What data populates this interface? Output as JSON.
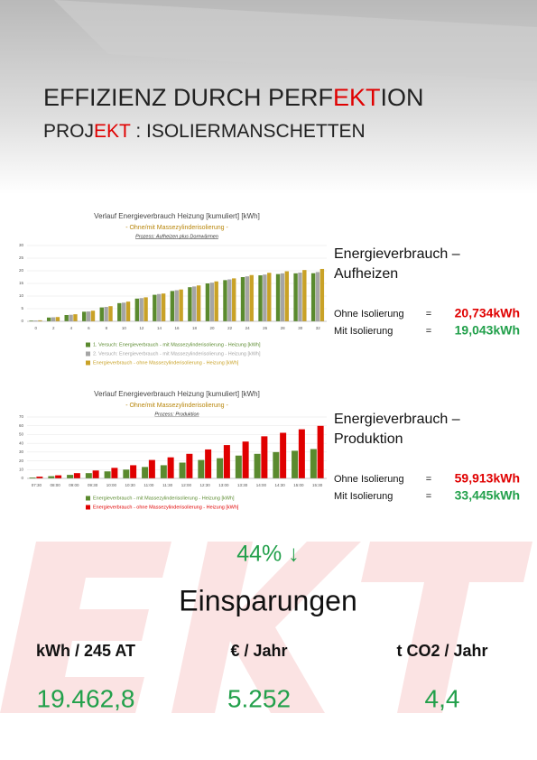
{
  "header": {
    "title_parts": [
      "EFFIZIENZ DURCH PERF",
      "EKT",
      "ION"
    ],
    "subtitle_parts": [
      "PROJ",
      "EKT",
      " : ISOLIERMANSCHETTEN"
    ]
  },
  "chart_data": [
    {
      "type": "bar",
      "title": "Verlauf Energieverbrauch Heizung [kumuliert] [kWh]",
      "subtitle": "- Ohne/mit Massezylinderisolierung -",
      "note": "Prozess: Aufheizen plus Dornwärmen",
      "categories": [
        "0",
        "2",
        "4",
        "6",
        "8",
        "10",
        "12",
        "14",
        "16",
        "18",
        "20",
        "22",
        "24",
        "26",
        "28",
        "30",
        "32"
      ],
      "series": [
        {
          "name": "1. Versuch: Energieverbrauch - mit Massezylinderisolierung - Heizung [kWh]",
          "color": "#5a8a2e",
          "values": [
            0.3,
            1.5,
            2.5,
            3.8,
            5.5,
            7.2,
            9,
            10.5,
            12,
            13.5,
            15,
            16.3,
            17.5,
            18.2,
            18.7,
            19,
            19.04
          ]
        },
        {
          "name": "2. Versuch: Energieverbrauch - mit Massezylinderisolierung - Heizung [kWh]",
          "color": "#a5a5a5",
          "values": [
            0.3,
            1.6,
            2.6,
            3.9,
            5.7,
            7.4,
            9.2,
            10.8,
            12.3,
            13.8,
            15.3,
            16.6,
            17.8,
            18.5,
            19,
            19.3,
            19.5
          ]
        },
        {
          "name": "Energieverbrauch - ohne Massezylinderisolierung - Heizung [kWh]",
          "color": "#c9a227",
          "values": [
            0.4,
            1.7,
            2.8,
            4.2,
            6,
            7.8,
            9.5,
            11,
            12.6,
            14.2,
            15.8,
            17,
            18.3,
            19.2,
            19.8,
            20.3,
            20.73
          ]
        }
      ],
      "ylim": [
        0,
        30
      ],
      "yticks": [
        0,
        5,
        10,
        15,
        20,
        25,
        30
      ],
      "grid": true
    },
    {
      "type": "bar",
      "title": "Verlauf Energieverbrauch Heizung [kumuliert] [kWh]",
      "subtitle": "- Ohne/mit Massezylinderisolierung -",
      "note": "Prozess: Produktion",
      "categories": [
        "07:30",
        "08:00",
        "09:00",
        "09:30",
        "10:00",
        "10:30",
        "11:00",
        "11:30",
        "12:00",
        "12:30",
        "13:00",
        "13:30",
        "14:00",
        "14:30",
        "15:00",
        "15:30"
      ],
      "series": [
        {
          "name": "Energieverbrauch - mit Massezylinderisolierung - Heizung [kWh]",
          "color": "#5a8a2e",
          "values": [
            1,
            2.5,
            4,
            6,
            8,
            10,
            13,
            15,
            18,
            21,
            23,
            26,
            28,
            30,
            31.5,
            33.45
          ]
        },
        {
          "name": "Energieverbrauch - ohne Massezylinderisolierung - Heizung [kWh]",
          "color": "#e00000",
          "values": [
            2,
            3.5,
            6,
            9,
            12,
            15,
            21,
            24,
            28,
            33,
            38,
            42,
            48,
            52,
            56,
            59.91
          ]
        }
      ],
      "ylim": [
        0,
        70
      ],
      "yticks": [
        0,
        10,
        20,
        30,
        40,
        50,
        60,
        70
      ],
      "grid": true
    }
  ],
  "sections": [
    {
      "heading_lines": [
        "Energieverbrauch –",
        "Aufheizen"
      ],
      "rows": [
        [
          "Ohne Isolierung",
          "=",
          "20,734kWh"
        ],
        [
          "Mit Isolierung",
          "=",
          "19,043kWh"
        ]
      ]
    },
    {
      "heading_lines": [
        "Energieverbrauch –",
        "Produktion"
      ],
      "rows": [
        [
          "Ohne Isolierung",
          "=",
          "59,913kWh"
        ],
        [
          "Mit Isolierung",
          "=",
          "33,445kWh"
        ]
      ]
    }
  ],
  "savings": {
    "percent": "44% ↓",
    "title": "Einsparungen",
    "columns": [
      {
        "label": "kWh / 245 AT",
        "value": "19.462,8"
      },
      {
        "label": "€ / Jahr",
        "value": "5.252"
      },
      {
        "label": "t CO2 / Jahr",
        "value": "4,4"
      }
    ]
  }
}
